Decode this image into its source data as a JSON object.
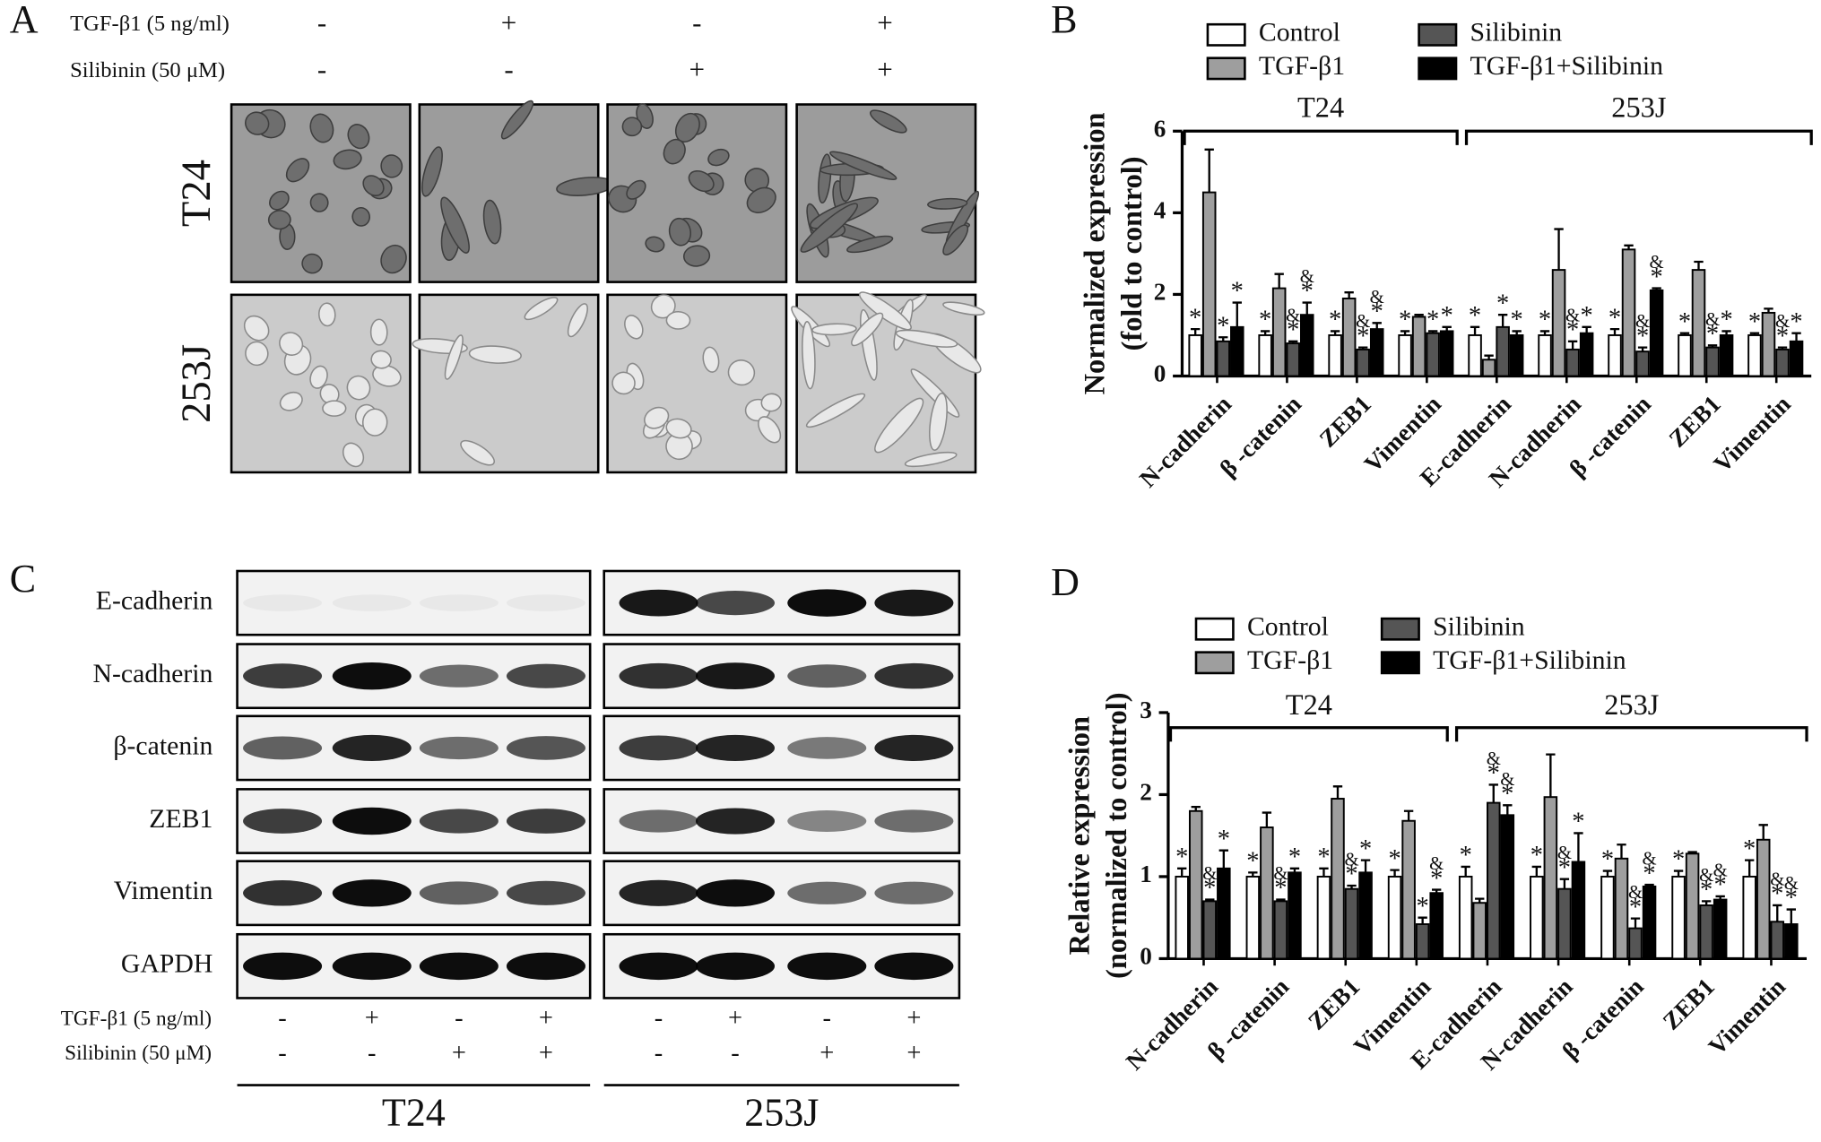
{
  "panel_a": {
    "label": "A",
    "conditions": [
      {
        "name": "TGF-β1 (5 ng/ml)",
        "signs": [
          "-",
          "+",
          "-",
          "+"
        ]
      },
      {
        "name": "Silibinin (50 μM)",
        "signs": [
          "-",
          "-",
          "+",
          "+"
        ]
      }
    ],
    "cell_lines": [
      "T24",
      "253J"
    ]
  },
  "panel_c": {
    "label": "C",
    "proteins": [
      "E-cadherin",
      "N-cadherin",
      "β-catenin",
      "ZEB1",
      "Vimentin",
      "GAPDH"
    ],
    "conditions": [
      {
        "name": "TGF-β1 (5 ng/ml)",
        "signs": [
          "-",
          "+",
          "-",
          "+",
          "-",
          "+",
          "-",
          "+"
        ]
      },
      {
        "name": "Silibinin (50 μM)",
        "signs": [
          "-",
          "-",
          "+",
          "+",
          "-",
          "-",
          "+",
          "+"
        ]
      }
    ],
    "cell_lines": [
      "T24",
      "253J"
    ]
  },
  "chart_data": [
    {
      "type": "bar",
      "panel_label": "B",
      "y_label": [
        "Normalized expression",
        "(fold to control)"
      ],
      "group_labels": [
        "T24",
        "253J"
      ],
      "categories": [
        "N-cadherin",
        "β -catenin",
        "ZEB1",
        "Vimentin",
        "E-cadherin",
        "N-cadherin",
        "β -catenin",
        "ZEB1",
        "Vimentin"
      ],
      "ylim": [
        0,
        6
      ],
      "yticks": [
        0,
        2,
        4,
        6
      ],
      "series": [
        {
          "name": "Control",
          "color": "#ffffff",
          "values": [
            1,
            1,
            1,
            1,
            1,
            1,
            1,
            1,
            1
          ],
          "errors": [
            0.15,
            0.1,
            0.1,
            0.1,
            0.2,
            0.1,
            0.15,
            0.05,
            0.05
          ],
          "annotations": [
            [
              "*"
            ],
            [
              "*"
            ],
            [
              "*"
            ],
            [
              "*"
            ],
            [
              "*"
            ],
            [
              "*"
            ],
            [
              "*"
            ],
            [
              "*"
            ],
            [
              "*"
            ]
          ]
        },
        {
          "name": "TGF-β1",
          "color": "#9e9e9e",
          "values": [
            4.5,
            2.15,
            1.9,
            1.45,
            0.4,
            2.6,
            3.1,
            2.6,
            1.55
          ],
          "errors": [
            1.05,
            0.35,
            0.15,
            0.05,
            0.1,
            1.0,
            0.1,
            0.2,
            0.1
          ],
          "annotations": [
            [],
            [],
            [],
            [],
            [],
            [],
            [],
            [],
            []
          ]
        },
        {
          "name": "Silibinin",
          "color": "#555555",
          "values": [
            0.85,
            0.8,
            0.65,
            1.05,
            1.2,
            0.65,
            0.6,
            0.7,
            0.65
          ],
          "errors": [
            0.1,
            0.05,
            0.05,
            0.05,
            0.3,
            0.2,
            0.1,
            0.05,
            0.05
          ],
          "annotations": [
            [
              "*"
            ],
            [
              "&",
              "*"
            ],
            [
              "&",
              "*"
            ],
            [
              "*"
            ],
            [
              "*"
            ],
            [
              "&",
              "*"
            ],
            [
              "&",
              "*"
            ],
            [
              "&",
              "*"
            ],
            [
              "&",
              "*"
            ]
          ]
        },
        {
          "name": "TGF-β1+Silibinin",
          "color": "#000000",
          "values": [
            1.2,
            1.5,
            1.15,
            1.1,
            1.0,
            1.05,
            2.1,
            1.0,
            0.85
          ],
          "errors": [
            0.6,
            0.3,
            0.15,
            0.1,
            0.1,
            0.15,
            0.05,
            0.1,
            0.2
          ],
          "annotations": [
            [
              "*"
            ],
            [
              "&",
              "*"
            ],
            [
              "&",
              "*"
            ],
            [
              "*"
            ],
            [
              "*"
            ],
            [
              "*"
            ],
            [
              "&",
              "*"
            ],
            [
              "*"
            ],
            [
              "*"
            ]
          ]
        }
      ]
    },
    {
      "type": "bar",
      "panel_label": "D",
      "y_label": [
        "Relative expression",
        "(normalized to control)"
      ],
      "group_labels": [
        "T24",
        "253J"
      ],
      "categories": [
        "N-cadherin",
        "β -catenin",
        "ZEB1",
        "Vimentin",
        "E-cadherin",
        "N-cadherin",
        "β -catenin",
        "ZEB1",
        "Vimentin"
      ],
      "ylim": [
        0,
        3
      ],
      "yticks": [
        0,
        1,
        2,
        3
      ],
      "series": [
        {
          "name": "Control",
          "color": "#ffffff",
          "values": [
            1,
            1,
            1,
            1,
            1,
            1,
            1,
            1,
            1
          ],
          "errors": [
            0.1,
            0.05,
            0.1,
            0.08,
            0.12,
            0.12,
            0.07,
            0.07,
            0.2
          ],
          "annotations": [
            [
              "*"
            ],
            [
              "*"
            ],
            [
              "*"
            ],
            [
              "*"
            ],
            [
              "*"
            ],
            [
              "*"
            ],
            [
              "*"
            ],
            [
              "*"
            ],
            [
              "*"
            ]
          ]
        },
        {
          "name": "TGF-β1",
          "color": "#9e9e9e",
          "values": [
            1.8,
            1.6,
            1.95,
            1.68,
            0.68,
            1.97,
            1.22,
            1.28,
            1.45
          ],
          "errors": [
            0.05,
            0.18,
            0.15,
            0.12,
            0.05,
            0.52,
            0.17,
            0.02,
            0.18
          ],
          "annotations": [
            [],
            [],
            [],
            [],
            [],
            [],
            [],
            [],
            []
          ]
        },
        {
          "name": "Silibinin",
          "color": "#555555",
          "values": [
            0.7,
            0.7,
            0.85,
            0.42,
            1.9,
            0.85,
            0.37,
            0.65,
            0.45
          ],
          "errors": [
            0.02,
            0.02,
            0.04,
            0.08,
            0.22,
            0.12,
            0.12,
            0.05,
            0.2
          ],
          "annotations": [
            [
              "&",
              "*"
            ],
            [
              "&",
              "*"
            ],
            [
              "&",
              "*"
            ],
            [
              "*"
            ],
            [
              "&",
              "*"
            ],
            [
              "&",
              "*"
            ],
            [
              "&",
              "*"
            ],
            [
              "&",
              "*"
            ],
            [
              "&",
              "*"
            ]
          ]
        },
        {
          "name": "TGF-β1+Silibinin",
          "color": "#000000",
          "values": [
            1.1,
            1.05,
            1.05,
            0.8,
            1.75,
            1.18,
            0.88,
            0.72,
            0.42
          ],
          "errors": [
            0.22,
            0.05,
            0.15,
            0.04,
            0.12,
            0.35,
            0.02,
            0.04,
            0.18
          ],
          "annotations": [
            [
              "*"
            ],
            [
              "*"
            ],
            [
              "*"
            ],
            [
              "&",
              "*"
            ],
            [
              "&",
              "*"
            ],
            [
              "*"
            ],
            [
              "&",
              "*"
            ],
            [
              "&",
              "*"
            ],
            [
              "&",
              "*"
            ]
          ]
        }
      ]
    }
  ]
}
